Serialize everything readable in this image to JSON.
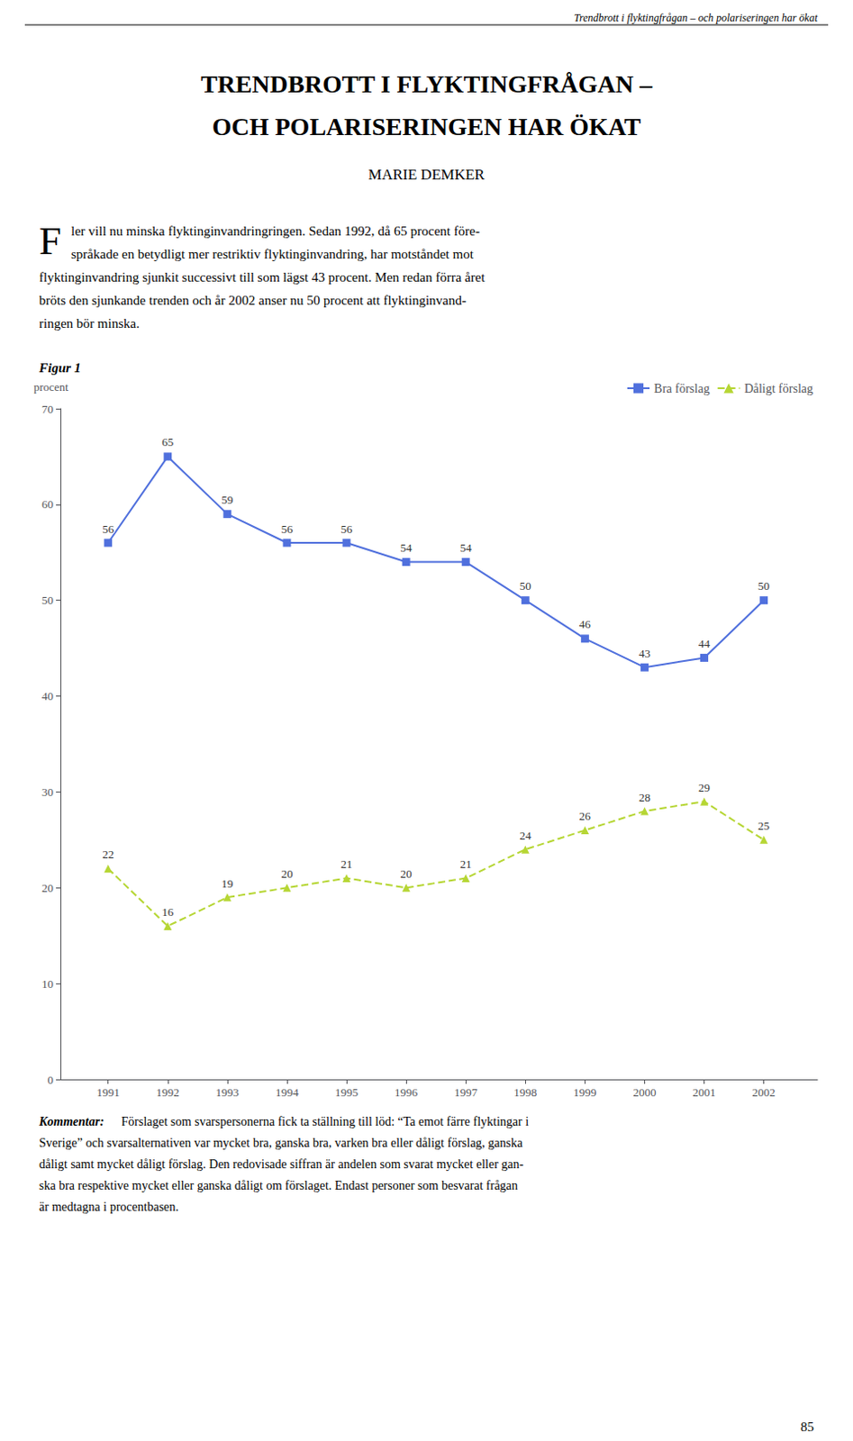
{
  "chart_data": {
    "type": "line",
    "title": "TRENDBROTT I FLYKTINGFRÅGAN –\nOCH POLARISERINGEN HAR ÖKAT",
    "subtitle": "MARIE DEMKER",
    "annotations": [
      "Trendbrott i flyktingfrågan – och polariseringen har ökat",
      "F",
      "ler vill nu minska flyktinginvandringringen. Sedan 1992, då 65 procent före-",
      "språkade en betydligt mer restriktiv flyktinginvandring, har motståndet mot",
      "flyktinginvandring sjunkit successivt till som lägst 43 procent. Men redan förra året",
      "bröts den sjunkande trenden och år 2002 anser nu 50 procent att flyktinginvand-",
      "ringen bör minska.",
      "Figur 1",
      "Kommentar:",
      " Förslaget som svarspersonerna fick ta ställning till löd: “Ta emot färre flyktingar i",
      "Sverige” och svarsalternativen var mycket bra, ganska bra, varken bra eller dåligt förslag, ganska",
      "dåligt samt mycket dåligt förslag. Den redovisade siffran är andelen som svarat mycket eller gan-",
      "ska bra respektive mycket eller ganska dåligt om förslaget. Endast personer som besvarat frågan",
      "är medtagna i procentbasen.",
      "85"
    ],
    "ylabel": "procent",
    "x": [
      1991,
      1992,
      1993,
      1994,
      1995,
      1996,
      1997,
      1998,
      1999,
      2000,
      2001,
      2002
    ],
    "xlim": [
      1990.2,
      2002.9
    ],
    "xticks": [
      1991,
      1992,
      1993,
      1994,
      1995,
      1996,
      1997,
      1998,
      1999,
      2000,
      2001,
      2002
    ],
    "ylim": [
      0,
      70
    ],
    "yticks": [
      0,
      10,
      20,
      30,
      40,
      50,
      60,
      70
    ],
    "series": [
      {
        "name": "Bra förslag",
        "values": [
          56,
          65,
          59,
          56,
          56,
          54,
          54,
          50,
          46,
          43,
          44,
          50
        ],
        "marker": "square",
        "line_style": "solid"
      },
      {
        "name": "Dåligt förslag",
        "values": [
          22,
          16,
          19,
          20,
          21,
          20,
          21,
          24,
          26,
          28,
          29,
          25
        ],
        "marker": "triangle",
        "line_style": "dashed"
      }
    ],
    "data_labels": true,
    "grid": false,
    "legend": "upper right"
  }
}
